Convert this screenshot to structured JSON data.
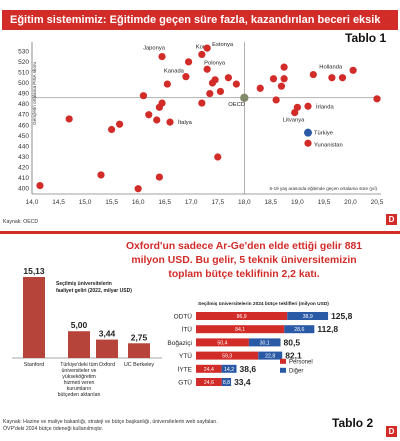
{
  "header": {
    "title": "Eğitim sistemimiz: Eğitimde geçen süre fazla, kazandırılan beceri eksik",
    "tablo1": "Tablo 1",
    "tablo2": "Tablo 2",
    "logo": "D"
  },
  "colors": {
    "brand_red": "#d22c29",
    "dark_red": "#b7443b",
    "blue": "#2a5aa6",
    "gray": "#a8a8a8",
    "oecd_green": "#808a6a"
  },
  "source1": "Kaynak: OECD",
  "source2": {
    "line1": "Kaynak: Hazine ve maliye bakanlığı, strateji ve bütçe başkanlığı, üniversitelerin web sayfaları.",
    "line2": "ÖVP'deki 2024 bütçe ödeneği kullanılmıştır."
  },
  "headline": "Oxford'un sadece Ar-Ge'den elde ettiği gelir 881 milyon USD. Bu gelir, 5 teknik üniversitemizin toplam bütçe teklifinin 2,2 katı.",
  "chart_data": [
    {
      "type": "scatter",
      "title": "",
      "xlabel": "5-19 yaş arasında eğitimde geçen ortalama süre (yıl)",
      "ylabel": "Gençlerin ortalama PISA skoru",
      "xlim": [
        14.0,
        20.5
      ],
      "ylim": [
        395,
        535
      ],
      "xticks": [
        "14,0",
        "14,5",
        "15,0",
        "15,5",
        "16,0",
        "16,5",
        "17,0",
        "17,5",
        "18,0",
        "18,5",
        "19,0",
        "19,5",
        "20,0",
        "20,5"
      ],
      "yticks": [
        "400",
        "410",
        "420",
        "430",
        "440",
        "450",
        "460",
        "470",
        "480",
        "490",
        "500",
        "510",
        "520",
        "530"
      ],
      "reference_lines": {
        "x": 18.0,
        "y": 486
      },
      "grid": false,
      "points": [
        {
          "x": 16.45,
          "y": 525,
          "label": "Japonya"
        },
        {
          "x": 17.2,
          "y": 527,
          "label": "Kore"
        },
        {
          "x": 17.3,
          "y": 533,
          "label": "Estonya"
        },
        {
          "x": 17.3,
          "y": 513,
          "label": "Polonya"
        },
        {
          "x": 16.9,
          "y": 506,
          "label": "Kanada"
        },
        {
          "x": 18.0,
          "y": 486,
          "label": "OECD",
          "highlight": "oecd"
        },
        {
          "x": 19.2,
          "y": 478,
          "label": "İrlanda"
        },
        {
          "x": 18.95,
          "y": 472,
          "label": "Litvanya"
        },
        {
          "x": 16.6,
          "y": 463,
          "label": "İtalya"
        },
        {
          "x": 19.2,
          "y": 453,
          "label": "Türkiye",
          "highlight": "turkey"
        },
        {
          "x": 19.2,
          "y": 443,
          "label": "Yunanistan"
        },
        {
          "x": 19.3,
          "y": 508,
          "label": "Hollanda"
        },
        {
          "x": 14.15,
          "y": 403,
          "label": ""
        },
        {
          "x": 14.7,
          "y": 466,
          "label": ""
        },
        {
          "x": 15.3,
          "y": 413,
          "label": ""
        },
        {
          "x": 15.5,
          "y": 456,
          "label": ""
        },
        {
          "x": 15.65,
          "y": 461,
          "label": ""
        },
        {
          "x": 16.0,
          "y": 400,
          "label": ""
        },
        {
          "x": 16.1,
          "y": 488,
          "label": ""
        },
        {
          "x": 16.2,
          "y": 470,
          "label": ""
        },
        {
          "x": 16.35,
          "y": 465,
          "label": ""
        },
        {
          "x": 16.4,
          "y": 411,
          "label": ""
        },
        {
          "x": 16.4,
          "y": 477,
          "label": ""
        },
        {
          "x": 16.45,
          "y": 481,
          "label": ""
        },
        {
          "x": 16.55,
          "y": 499,
          "label": ""
        },
        {
          "x": 16.95,
          "y": 520,
          "label": ""
        },
        {
          "x": 17.2,
          "y": 481,
          "label": ""
        },
        {
          "x": 17.35,
          "y": 490,
          "label": ""
        },
        {
          "x": 17.4,
          "y": 500,
          "label": ""
        },
        {
          "x": 17.45,
          "y": 503,
          "label": ""
        },
        {
          "x": 17.5,
          "y": 430,
          "label": ""
        },
        {
          "x": 17.55,
          "y": 492,
          "label": ""
        },
        {
          "x": 17.7,
          "y": 505,
          "label": ""
        },
        {
          "x": 17.85,
          "y": 499,
          "label": ""
        },
        {
          "x": 18.3,
          "y": 495,
          "label": ""
        },
        {
          "x": 18.55,
          "y": 504,
          "label": ""
        },
        {
          "x": 18.6,
          "y": 484,
          "label": ""
        },
        {
          "x": 18.7,
          "y": 497,
          "label": ""
        },
        {
          "x": 18.75,
          "y": 504,
          "label": ""
        },
        {
          "x": 18.75,
          "y": 515,
          "label": ""
        },
        {
          "x": 19.0,
          "y": 477,
          "label": ""
        },
        {
          "x": 19.65,
          "y": 505,
          "label": ""
        },
        {
          "x": 19.85,
          "y": 505,
          "label": ""
        },
        {
          "x": 20.05,
          "y": 512,
          "label": ""
        },
        {
          "x": 20.5,
          "y": 485,
          "label": ""
        }
      ]
    },
    {
      "type": "bar",
      "title": "Seçilmiş üniversitelerin faaliyet geliri (2022, milyar USD)",
      "categories": [
        "Stanford",
        "Türkiye'deki tüm üniversiteler ve yükseköğretim hizmeti veren kurumların bütçeden aktarılan",
        "Oxford",
        "UC Berkeley"
      ],
      "values": [
        15.13,
        5.0,
        3.44,
        2.75
      ],
      "value_labels": [
        "15,13",
        "5,00",
        "3,44",
        "2,75"
      ],
      "ylim": [
        0,
        15.13
      ]
    },
    {
      "type": "bar",
      "orientation": "horizontal",
      "stacked": true,
      "title": "Seçilmiş üniversitelerin 2024 bütçe teklifleri (milyon USD)",
      "categories": [
        "ODTÜ",
        "İTÜ",
        "Boğaziçi",
        "YTÜ",
        "İYTE",
        "GTÜ"
      ],
      "series": [
        {
          "name": "Personel",
          "values": [
            86.9,
            84.1,
            50.4,
            59.3,
            24.4,
            24.6
          ],
          "labels": [
            "86,9",
            "84,1",
            "50,4",
            "59,3",
            "24,4",
            "24,6"
          ]
        },
        {
          "name": "Diğer",
          "values": [
            38.9,
            28.6,
            30.1,
            22.8,
            14.2,
            8.8
          ],
          "labels": [
            "38,9",
            "28,6",
            "30,1",
            "22,8",
            "14,2",
            "8,8"
          ]
        }
      ],
      "totals": [
        "125,8",
        "112,8",
        "80,5",
        "82,1",
        "38,6",
        "33,4"
      ],
      "legend": "right"
    }
  ]
}
